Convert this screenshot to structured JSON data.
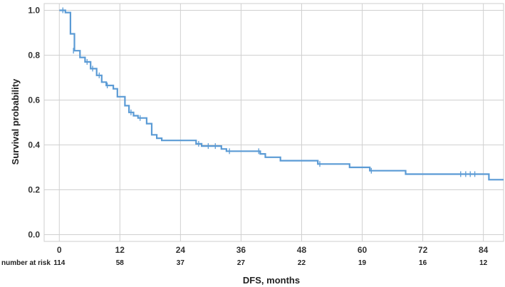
{
  "chart_data": {
    "type": "line",
    "subtype": "kaplan-meier-step",
    "xlabel": "DFS, months",
    "ylabel": "Survival probability",
    "xlim": [
      -3,
      88
    ],
    "ylim": [
      -0.03,
      1.03
    ],
    "x_ticks": [
      0,
      12,
      24,
      36,
      48,
      60,
      72,
      84
    ],
    "x_tick_labels": [
      "0",
      "12",
      "24",
      "36",
      "48",
      "60",
      "72",
      "84"
    ],
    "y_ticks": [
      0.0,
      0.2,
      0.4,
      0.6,
      0.8,
      1.0
    ],
    "y_tick_labels": [
      "0.0",
      "0.2",
      "0.4",
      "0.6",
      "0.8",
      "1.0"
    ],
    "grid": true,
    "line_color": "#5b9bd5",
    "series": [
      {
        "steps": [
          [
            0,
            1.0
          ],
          [
            1.2,
            0.99
          ],
          [
            2.2,
            0.895
          ],
          [
            3,
            0.82
          ],
          [
            4.1,
            0.79
          ],
          [
            5.1,
            0.77
          ],
          [
            6.2,
            0.74
          ],
          [
            7.4,
            0.71
          ],
          [
            8.4,
            0.68
          ],
          [
            9.3,
            0.665
          ],
          [
            10.7,
            0.65
          ],
          [
            11.5,
            0.615
          ],
          [
            13,
            0.575
          ],
          [
            13.8,
            0.545
          ],
          [
            14.7,
            0.53
          ],
          [
            15.6,
            0.52
          ],
          [
            17.3,
            0.495
          ],
          [
            18.3,
            0.445
          ],
          [
            19.3,
            0.43
          ],
          [
            20.3,
            0.42
          ],
          [
            27.1,
            0.405
          ],
          [
            28.2,
            0.395
          ],
          [
            32.1,
            0.382
          ],
          [
            33.1,
            0.372
          ],
          [
            39.8,
            0.36
          ],
          [
            40.8,
            0.345
          ],
          [
            43.8,
            0.33
          ],
          [
            51.2,
            0.315
          ],
          [
            57.5,
            0.3
          ],
          [
            61.5,
            0.285
          ],
          [
            68.6,
            0.27
          ],
          [
            85.1,
            0.245
          ],
          [
            88,
            0.245
          ]
        ],
        "censored": [
          [
            0.7,
            1.0
          ],
          [
            2.8,
            0.82
          ],
          [
            5.5,
            0.77
          ],
          [
            6.6,
            0.74
          ],
          [
            7.9,
            0.71
          ],
          [
            9.5,
            0.665
          ],
          [
            14.2,
            0.545
          ],
          [
            16.0,
            0.52
          ],
          [
            27.6,
            0.405
          ],
          [
            29.5,
            0.395
          ],
          [
            30.9,
            0.395
          ],
          [
            33.7,
            0.372
          ],
          [
            39.5,
            0.372
          ],
          [
            51.6,
            0.315
          ],
          [
            61.8,
            0.285
          ],
          [
            79.5,
            0.27
          ],
          [
            80.5,
            0.27
          ],
          [
            81.4,
            0.27
          ],
          [
            82.3,
            0.27
          ]
        ]
      }
    ],
    "risk_table": {
      "label": "number at risk",
      "times": [
        0,
        12,
        24,
        36,
        48,
        60,
        72,
        84
      ],
      "counts": [
        "114",
        "58",
        "37",
        "27",
        "22",
        "19",
        "16",
        "12"
      ]
    }
  }
}
